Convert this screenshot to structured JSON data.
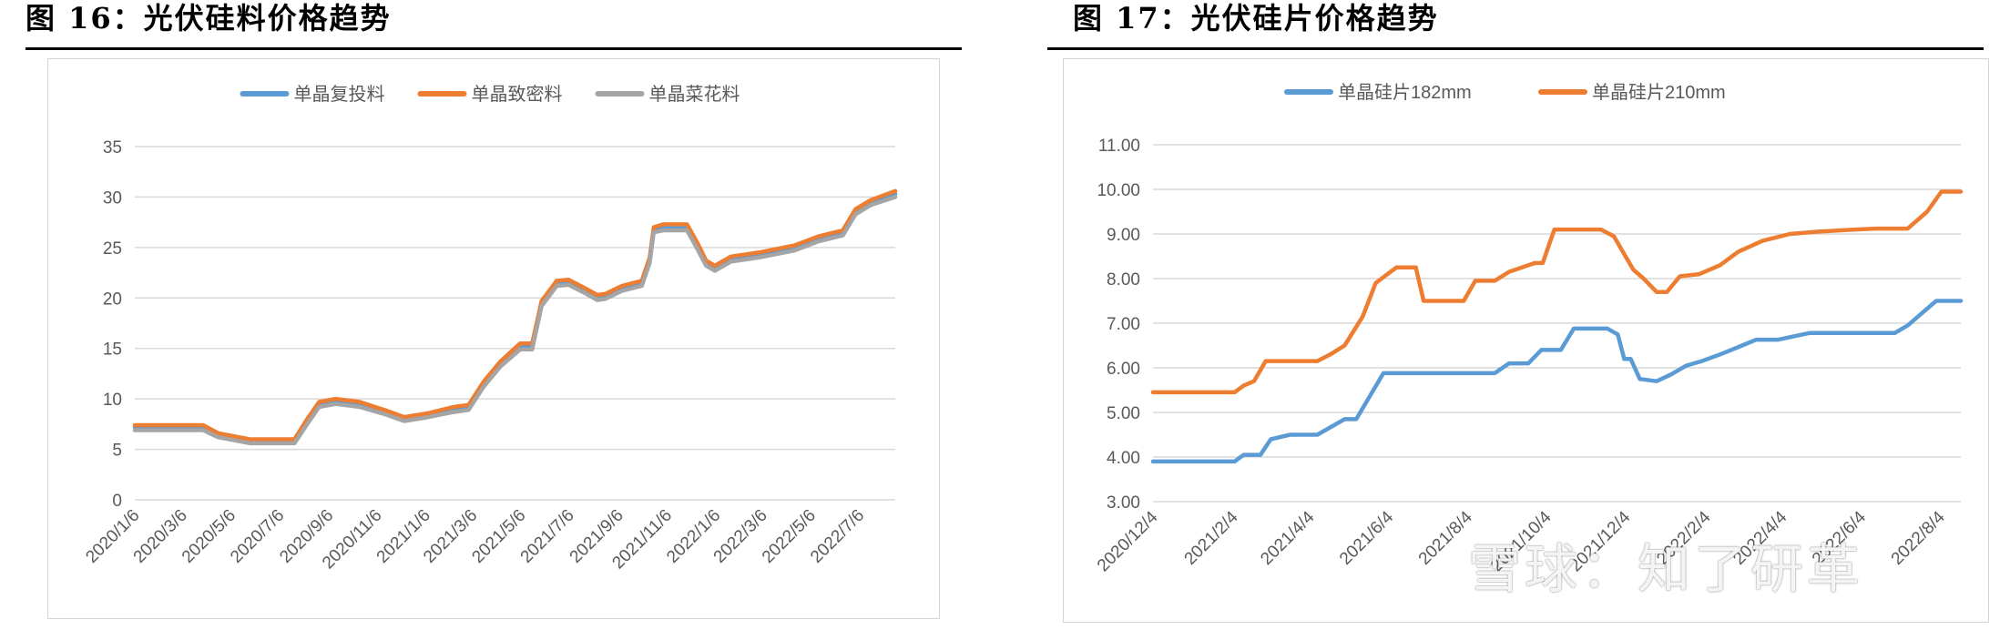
{
  "figures": [
    {
      "title": "图 16：光伏硅料价格趋势"
    },
    {
      "title": "图 17：光伏硅片价格趋势"
    }
  ],
  "watermark": "雪球：知了研革",
  "chart_data": [
    {
      "type": "line",
      "title": "",
      "xlabel": "",
      "ylabel": "",
      "ylim": [
        0,
        35
      ],
      "yticks": [
        0,
        5,
        10,
        15,
        20,
        25,
        30,
        35
      ],
      "xtick_labels": [
        "2020/1/6",
        "2020/3/6",
        "2020/5/6",
        "2020/7/6",
        "2020/9/6",
        "2020/11/6",
        "2021/1/6",
        "2021/3/6",
        "2021/5/6",
        "2021/7/6",
        "2021/9/6",
        "2021/11/6",
        "2022/1/6",
        "2022/3/6",
        "2022/5/6",
        "2022/7/6"
      ],
      "x_range": [
        "2020/1/6",
        "2022/8/20"
      ],
      "grid": "horizontal",
      "legend": "top-center",
      "series": [
        {
          "name": "单晶复投料",
          "color": "#5b9bd5",
          "x": [
            "2020/1/6",
            "2020/4/1",
            "2020/4/20",
            "2020/5/10",
            "2020/5/30",
            "2020/7/25",
            "2020/8/10",
            "2020/8/25",
            "2020/9/15",
            "2020/10/15",
            "2020/11/15",
            "2020/12/10",
            "2021/1/10",
            "2021/2/10",
            "2021/3/1",
            "2021/3/20",
            "2021/4/10",
            "2021/5/5",
            "2021/5/20",
            "2021/6/1",
            "2021/6/20",
            "2021/7/5",
            "2021/7/25",
            "2021/8/10",
            "2021/8/20",
            "2021/9/10",
            "2021/10/5",
            "2021/10/15",
            "2021/10/20",
            "2021/11/1",
            "2021/12/1",
            "2021/12/15",
            "2021/12/25",
            "2022/1/5",
            "2022/1/25",
            "2022/3/1",
            "2022/4/15",
            "2022/5/15",
            "2022/6/15",
            "2022/7/1",
            "2022/7/20",
            "2022/8/20"
          ],
          "values": [
            7.2,
            7.2,
            6.5,
            6.2,
            5.9,
            5.9,
            7.8,
            9.5,
            9.8,
            9.5,
            8.8,
            8.1,
            8.5,
            9.0,
            9.2,
            11.5,
            13.5,
            15.2,
            15.2,
            19.5,
            21.5,
            21.6,
            20.8,
            20.1,
            20.2,
            21.0,
            21.5,
            23.8,
            26.8,
            27.0,
            27.0,
            25.0,
            23.5,
            23.0,
            23.9,
            24.3,
            25.0,
            25.9,
            26.5,
            28.6,
            29.5,
            30.3
          ]
        },
        {
          "name": "单晶致密料",
          "color": "#ed7d31",
          "x": [
            "2020/1/6",
            "2020/4/1",
            "2020/4/20",
            "2020/5/10",
            "2020/5/30",
            "2020/7/25",
            "2020/8/10",
            "2020/8/25",
            "2020/9/15",
            "2020/10/15",
            "2020/11/15",
            "2020/12/10",
            "2021/1/10",
            "2021/2/10",
            "2021/3/1",
            "2021/3/20",
            "2021/4/10",
            "2021/5/5",
            "2021/5/20",
            "2021/6/1",
            "2021/6/20",
            "2021/7/5",
            "2021/7/25",
            "2021/8/10",
            "2021/8/20",
            "2021/9/10",
            "2021/10/5",
            "2021/10/15",
            "2021/10/20",
            "2021/11/1",
            "2021/12/1",
            "2021/12/15",
            "2021/12/25",
            "2022/1/5",
            "2022/1/25",
            "2022/3/1",
            "2022/4/15",
            "2022/5/15",
            "2022/6/15",
            "2022/7/1",
            "2022/7/20",
            "2022/8/20"
          ],
          "values": [
            7.4,
            7.4,
            6.6,
            6.3,
            6.0,
            6.0,
            8.0,
            9.7,
            10.0,
            9.7,
            8.9,
            8.2,
            8.6,
            9.2,
            9.4,
            11.7,
            13.7,
            15.5,
            15.5,
            19.7,
            21.7,
            21.8,
            21.0,
            20.3,
            20.4,
            21.2,
            21.7,
            24.0,
            27.0,
            27.3,
            27.3,
            25.3,
            23.7,
            23.2,
            24.1,
            24.5,
            25.2,
            26.1,
            26.7,
            28.8,
            29.7,
            30.6
          ]
        },
        {
          "name": "单晶菜花料",
          "color": "#a5a5a5",
          "x": [
            "2020/1/6",
            "2020/4/1",
            "2020/4/20",
            "2020/5/10",
            "2020/5/30",
            "2020/7/25",
            "2020/8/10",
            "2020/8/25",
            "2020/9/15",
            "2020/10/15",
            "2020/11/15",
            "2020/12/10",
            "2021/1/10",
            "2021/2/10",
            "2021/3/1",
            "2021/3/20",
            "2021/4/10",
            "2021/5/5",
            "2021/5/20",
            "2021/6/1",
            "2021/6/20",
            "2021/7/5",
            "2021/7/25",
            "2021/8/10",
            "2021/8/20",
            "2021/9/10",
            "2021/10/5",
            "2021/10/15",
            "2021/10/20",
            "2021/11/1",
            "2021/12/1",
            "2021/12/15",
            "2021/12/25",
            "2022/1/5",
            "2022/1/25",
            "2022/3/1",
            "2022/4/15",
            "2022/5/15",
            "2022/6/15",
            "2022/7/1",
            "2022/7/20",
            "2022/8/20"
          ],
          "values": [
            6.9,
            6.9,
            6.2,
            5.9,
            5.6,
            5.6,
            7.5,
            9.2,
            9.5,
            9.2,
            8.5,
            7.8,
            8.2,
            8.7,
            8.9,
            11.2,
            13.2,
            14.9,
            14.9,
            19.2,
            21.2,
            21.3,
            20.5,
            19.8,
            19.9,
            20.7,
            21.2,
            23.5,
            26.5,
            26.7,
            26.7,
            24.7,
            23.2,
            22.7,
            23.6,
            24.0,
            24.7,
            25.6,
            26.2,
            28.3,
            29.2,
            30.0
          ]
        }
      ]
    },
    {
      "type": "line",
      "title": "",
      "xlabel": "",
      "ylabel": "",
      "ylim": [
        3.0,
        11.0
      ],
      "yticks": [
        "3.00",
        "4.00",
        "5.00",
        "6.00",
        "7.00",
        "8.00",
        "9.00",
        "10.00",
        "11.00"
      ],
      "xtick_labels": [
        "2020/12/4",
        "2021/2/4",
        "2021/4/4",
        "2021/6/4",
        "2021/8/4",
        "2021/10/4",
        "2021/12/4",
        "2022/2/4",
        "2022/4/4",
        "2022/6/4",
        "2022/8/4"
      ],
      "x_range": [
        "2020/12/4",
        "2022/8/20"
      ],
      "grid": "horizontal",
      "legend": "top-center",
      "series": [
        {
          "name": "单晶硅片182mm",
          "color": "#5b9bd5",
          "x": [
            "2020/12/4",
            "2021/2/5",
            "2021/2/12",
            "2021/2/25",
            "2021/3/5",
            "2021/3/20",
            "2021/4/10",
            "2021/5/1",
            "2021/5/10",
            "2021/5/31",
            "2021/6/10",
            "2021/8/25",
            "2021/9/5",
            "2021/9/20",
            "2021/9/30",
            "2021/10/15",
            "2021/10/25",
            "2021/11/20",
            "2021/11/28",
            "2021/12/3",
            "2021/12/8",
            "2021/12/15",
            "2021/12/28",
            "2022/1/8",
            "2022/1/20",
            "2022/2/1",
            "2022/2/15",
            "2022/2/28",
            "2022/3/15",
            "2022/4/1",
            "2022/4/25",
            "2022/6/30",
            "2022/7/10",
            "2022/7/20",
            "2022/8/1",
            "2022/8/20"
          ],
          "values": [
            3.9,
            3.9,
            4.05,
            4.05,
            4.4,
            4.5,
            4.5,
            4.85,
            4.85,
            5.88,
            5.88,
            5.88,
            6.1,
            6.1,
            6.4,
            6.4,
            6.88,
            6.88,
            6.75,
            6.2,
            6.2,
            5.75,
            5.7,
            5.85,
            6.05,
            6.15,
            6.3,
            6.45,
            6.63,
            6.63,
            6.78,
            6.78,
            6.95,
            7.2,
            7.5,
            7.5
          ]
        },
        {
          "name": "单晶硅片210mm",
          "color": "#ed7d31",
          "x": [
            "2020/12/4",
            "2021/2/5",
            "2021/2/12",
            "2021/2/20",
            "2021/3/1",
            "2021/3/10",
            "2021/4/10",
            "2021/4/20",
            "2021/5/1",
            "2021/5/15",
            "2021/5/25",
            "2021/6/10",
            "2021/6/25",
            "2021/7/1",
            "2021/8/1",
            "2021/8/10",
            "2021/8/25",
            "2021/9/5",
            "2021/9/15",
            "2021/9/25",
            "2021/10/1",
            "2021/10/10",
            "2021/11/15",
            "2021/11/25",
            "2021/12/10",
            "2021/12/18",
            "2021/12/28",
            "2022/1/5",
            "2022/1/15",
            "2022/1/30",
            "2022/2/15",
            "2022/3/1",
            "2022/3/20",
            "2022/4/10",
            "2022/5/1",
            "2022/5/31",
            "2022/6/15",
            "2022/7/10",
            "2022/7/25",
            "2022/8/5",
            "2022/8/20"
          ],
          "values": [
            5.45,
            5.45,
            5.6,
            5.7,
            6.15,
            6.15,
            6.15,
            6.3,
            6.5,
            7.15,
            7.9,
            8.25,
            8.25,
            7.5,
            7.5,
            7.95,
            7.95,
            8.15,
            8.25,
            8.35,
            8.35,
            9.1,
            9.1,
            8.95,
            8.2,
            8.0,
            7.7,
            7.7,
            8.05,
            8.1,
            8.3,
            8.6,
            8.85,
            9.0,
            9.05,
            9.1,
            9.12,
            9.12,
            9.5,
            9.95,
            9.95
          ]
        }
      ]
    }
  ]
}
